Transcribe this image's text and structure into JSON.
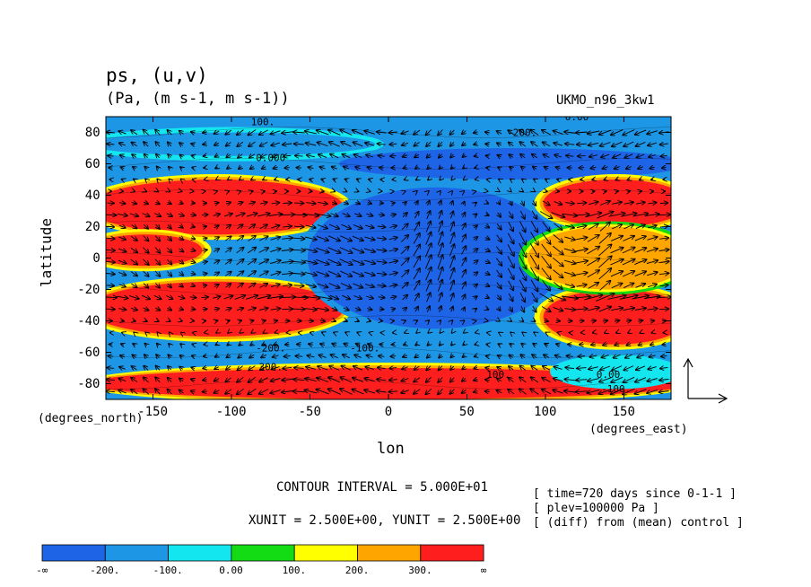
{
  "title": {
    "variables": "ps, (u,v)",
    "units": "(Pa, (m s-1, m s-1))",
    "run": "UKMO_n96_3kw1"
  },
  "axes": {
    "xlabel": "lon",
    "ylabel": "latitude",
    "x_unit": "(degrees_east)",
    "y_unit": "(degrees_north)"
  },
  "footer": {
    "contour_interval": "CONTOUR INTERVAL = 5.000E+01",
    "vector_units": "XUNIT = 2.500E+00, YUNIT = 2.500E+00",
    "info": [
      "[ time=720 days since 0-1-1 ]",
      "[ plev=100000 Pa ]",
      "[ (diff) from (mean) control ]"
    ]
  },
  "chart_data": {
    "type": "heatmap",
    "title": "ps, (u,v)",
    "subtitle": "(Pa, (m s-1, m s-1))",
    "xlabel": "lon",
    "ylabel": "latitude",
    "xlim": [
      -180,
      180
    ],
    "ylim": [
      -90,
      90
    ],
    "x_ticks": [
      -150,
      -100,
      -50,
      0,
      50,
      100,
      150
    ],
    "x_tick_labels": [
      "-150",
      "-100",
      "-50",
      "0",
      "50",
      "100",
      "150"
    ],
    "y_ticks": [
      80,
      60,
      40,
      20,
      0,
      -20,
      -40,
      -60,
      -80
    ],
    "y_tick_labels": [
      "80",
      "60",
      "40",
      "20",
      "0",
      "-20",
      "-40",
      "-60",
      "-80"
    ],
    "levels": [
      "-∞",
      "-200.",
      "-100.",
      "0.00",
      "100.",
      "200.",
      "300.",
      "∞"
    ],
    "colors": [
      "#1e64e6",
      "#1e96e6",
      "#14e6f0",
      "#14dc14",
      "#ffff00",
      "#ffa500",
      "#ff1e1e"
    ],
    "contour_labels": [
      {
        "text": "100.",
        "lon": -80,
        "lat": 87
      },
      {
        "text": "0.00",
        "lon": 120,
        "lat": 90
      },
      {
        "text": "-200.",
        "lon": 85,
        "lat": 80
      },
      {
        "text": "0.000",
        "lon": -75,
        "lat": 64
      },
      {
        "text": "-200.",
        "lon": -75,
        "lat": -57
      },
      {
        "text": "-100.",
        "lon": -15,
        "lat": -57
      },
      {
        "text": "300.",
        "lon": -75,
        "lat": -69
      },
      {
        "text": "100.",
        "lon": 70,
        "lat": -74
      },
      {
        "text": "0.00",
        "lon": 140,
        "lat": -74
      },
      {
        "text": "-100.",
        "lon": 145,
        "lat": -83
      }
    ],
    "regions": [
      {
        "level": "-200. to -100.",
        "lat_band": [
          65,
          80
        ],
        "lon_range": [
          -180,
          -20
        ]
      },
      {
        "level": "< -200.",
        "lat_band": [
          50,
          70
        ],
        "lon_range": [
          -20,
          180
        ]
      },
      {
        "level": "> 300.",
        "lat_band": [
          15,
          50
        ],
        "lon_range": [
          -180,
          -40
        ]
      },
      {
        "level": "> 300.",
        "lat_band": [
          -50,
          -15
        ],
        "lon_range": [
          -180,
          -40
        ]
      },
      {
        "level": "> 300.",
        "lat_band": [
          -5,
          15
        ],
        "lon_range": [
          -180,
          -130
        ]
      },
      {
        "level": "< -200.",
        "lat_band": [
          -45,
          45
        ],
        "lon_range": [
          -40,
          100
        ]
      },
      {
        "level": "> 300.",
        "lat_band": [
          20,
          50
        ],
        "lon_range": [
          110,
          180
        ]
      },
      {
        "level": "> 300.",
        "lat_band": [
          -55,
          -20
        ],
        "lon_range": [
          110,
          180
        ]
      },
      {
        "level": "100. to 300.",
        "lat_band": [
          -20,
          20
        ],
        "lon_range": [
          100,
          180
        ]
      },
      {
        "level": "> 300.",
        "lat_band": [
          -90,
          -70
        ],
        "lon_range": [
          -180,
          180
        ]
      },
      {
        "level": "-100. to 0.00",
        "lat_band": [
          -80,
          -65
        ],
        "lon_range": [
          120,
          170
        ]
      }
    ],
    "vectors": true,
    "reference_vector": {
      "x_unit": 2.5,
      "y_unit": 2.5
    }
  }
}
